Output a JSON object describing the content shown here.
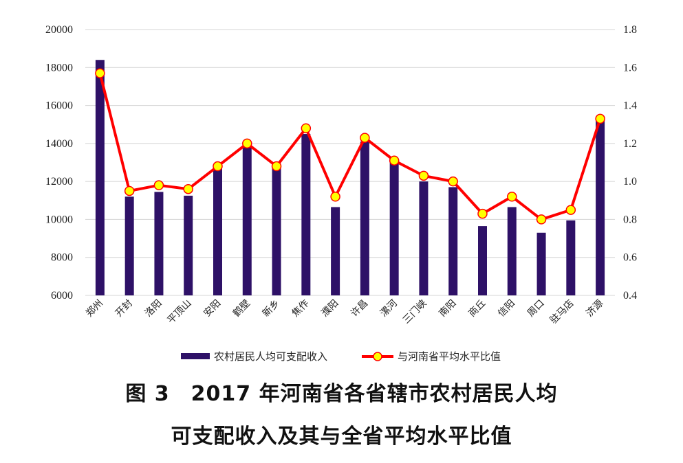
{
  "chart_data": {
    "type": "bar",
    "categories": [
      "郑州",
      "开封",
      "洛阳",
      "平顶山",
      "安阳",
      "鹤壁",
      "新乡",
      "焦作",
      "濮阳",
      "许昌",
      "漯河",
      "三门峡",
      "南阳",
      "商丘",
      "信阳",
      "周口",
      "驻马店",
      "济源"
    ],
    "series": [
      {
        "name": "农村居民人均可支配收入",
        "type": "bar",
        "axis": "left",
        "color": "#2e1167",
        "values": [
          18400,
          11200,
          11450,
          11250,
          12750,
          13850,
          12800,
          14500,
          10650,
          14100,
          13000,
          12000,
          11700,
          9650,
          10650,
          9300,
          9950,
          15400
        ]
      },
      {
        "name": "与河南省平均水平比值",
        "type": "line",
        "axis": "right",
        "color": "#ff0000",
        "marker_color": "#ffff00",
        "values": [
          1.57,
          0.95,
          0.98,
          0.96,
          1.08,
          1.2,
          1.08,
          1.28,
          0.92,
          1.23,
          1.11,
          1.03,
          1.0,
          0.83,
          0.92,
          0.8,
          0.85,
          1.33
        ]
      }
    ],
    "y_left": {
      "ticks": [
        "20000",
        "18000",
        "16000",
        "14000",
        "12000",
        "10000",
        "8000",
        "6000"
      ],
      "ylim": [
        6000,
        20000
      ]
    },
    "y_right": {
      "ticks": [
        "1.8",
        "1.6",
        "1.4",
        "1.2",
        "1.0",
        "0.8",
        "0.6",
        "0.4"
      ],
      "ylim": [
        0.4,
        1.8
      ]
    },
    "grid": true,
    "legend_position": "bottom"
  },
  "caption": {
    "line1": "图 3　2017 年河南省各省辖市农村居民人均",
    "line2": "可支配收入及其与全省平均水平比值"
  }
}
